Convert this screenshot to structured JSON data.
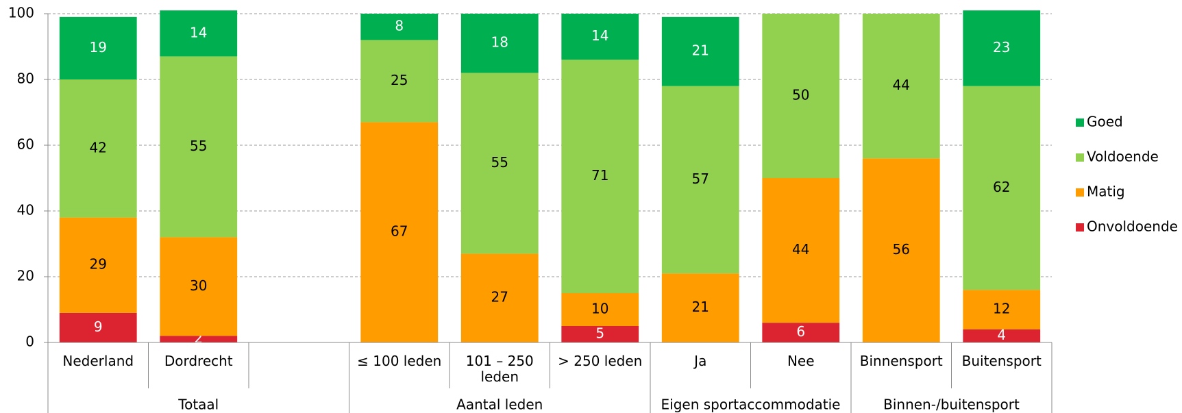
{
  "chart_data": {
    "type": "stacked_bar",
    "categories": [
      "Nederland",
      "Dordrecht",
      null,
      "≤ 100 leden",
      "101 – 250 leden",
      "> 250 leden",
      "Ja",
      "Nee",
      "Binnensport",
      "Buitensport"
    ],
    "groups": [
      {
        "name": "Totaal",
        "size": 3
      },
      {
        "name": "Aantal leden",
        "size": 3
      },
      {
        "name": "Eigen sportaccommodatie",
        "size": 2
      },
      {
        "name": "Binnen-/buitensport",
        "size": 2
      }
    ],
    "series": [
      {
        "name": "Onvoldoende",
        "color": "#dc2430",
        "label_color": "#ffffff",
        "values": [
          9,
          2,
          null,
          null,
          null,
          5,
          null,
          6,
          null,
          4
        ]
      },
      {
        "name": "Matig",
        "color": "#ff9c00",
        "label_color": "#000000",
        "values": [
          29,
          30,
          null,
          67,
          27,
          10,
          21,
          44,
          56,
          12
        ]
      },
      {
        "name": "Voldoende",
        "color": "#92d050",
        "label_color": "#000000",
        "values": [
          42,
          55,
          null,
          25,
          55,
          71,
          57,
          50,
          44,
          62
        ]
      },
      {
        "name": "Goed",
        "color": "#00b050",
        "label_color": "#ffffff",
        "values": [
          19,
          14,
          null,
          8,
          18,
          14,
          21,
          null,
          null,
          23
        ]
      }
    ],
    "ylim": [
      0,
      100
    ],
    "yticks": [
      0,
      20,
      40,
      60,
      80,
      100
    ],
    "grid": true,
    "legend": "right"
  }
}
